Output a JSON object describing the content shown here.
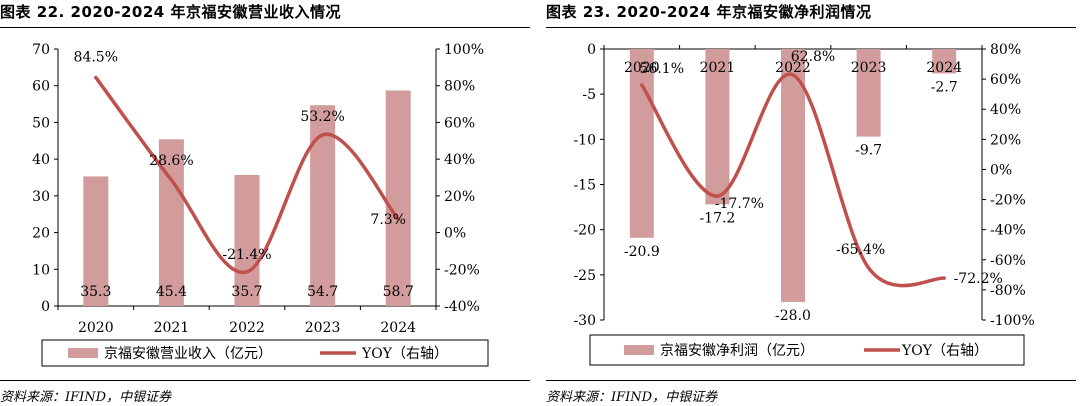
{
  "colors": {
    "bar": "#d29c9c",
    "line": "#c0504d",
    "axis": "#000000"
  },
  "panels": [
    {
      "title": "图表 22. 2020-2024 年京福安徽营业收入情况",
      "source": "资料来源：IFIND，中银证券",
      "chart_data": {
        "type": "bar",
        "categories": [
          "2020",
          "2021",
          "2022",
          "2023",
          "2024"
        ],
        "series": [
          {
            "name": "京福安徽营业收入（亿元）",
            "type": "bar",
            "axis": "left",
            "values": [
              35.3,
              45.4,
              35.7,
              54.7,
              58.7
            ],
            "labels": [
              "35.3",
              "45.4",
              "35.7",
              "54.7",
              "58.7"
            ]
          },
          {
            "name": "YOY（右轴）",
            "type": "line",
            "axis": "right",
            "smooth": true,
            "values": [
              84.5,
              28.6,
              -21.4,
              53.2,
              7.3
            ],
            "labels": [
              "84.5%",
              "28.6%",
              "-21.4%",
              "53.2%",
              "7.3%"
            ]
          }
        ],
        "y_left": {
          "min": 0,
          "max": 70,
          "ticks": [
            0,
            10,
            20,
            30,
            40,
            50,
            60,
            70
          ],
          "tick_labels": [
            "0",
            "10",
            "20",
            "30",
            "40",
            "50",
            "60",
            "70"
          ]
        },
        "y_right": {
          "min": -40,
          "max": 100,
          "ticks": [
            -40,
            -20,
            0,
            20,
            40,
            60,
            80,
            100
          ],
          "tick_labels": [
            "-40%",
            "-20%",
            "0%",
            "20%",
            "40%",
            "60%",
            "80%",
            "100%"
          ]
        },
        "category_labels_position": "bottom",
        "legend": "bottom",
        "grid": false
      }
    },
    {
      "title": "图表 23. 2020-2024 年京福安徽净利润情况",
      "source": "资料来源：IFIND，中银证券",
      "chart_data": {
        "type": "bar",
        "categories": [
          "2020",
          "2021",
          "2022",
          "2023",
          "2024"
        ],
        "series": [
          {
            "name": "京福安徽净利润（亿元）",
            "type": "bar",
            "axis": "left",
            "values": [
              -20.9,
              -17.2,
              -28.0,
              -9.7,
              -2.7
            ],
            "labels": [
              "-20.9",
              "-17.2",
              "-28.0",
              "-9.7",
              "-2.7"
            ]
          },
          {
            "name": "YOY（右轴）",
            "type": "line",
            "axis": "right",
            "smooth": true,
            "values": [
              56.1,
              -17.7,
              62.8,
              -65.4,
              -72.2
            ],
            "labels": [
              "56.1%",
              "-17.7%",
              "62.8%",
              "-65.4%",
              "-72.2%"
            ]
          }
        ],
        "y_left": {
          "min": -30,
          "max": 0,
          "ticks": [
            -30,
            -25,
            -20,
            -15,
            -10,
            -5,
            0
          ],
          "tick_labels": [
            "-30",
            "-25",
            "-20",
            "-15",
            "-10",
            "-5",
            "0"
          ]
        },
        "y_right": {
          "min": -100,
          "max": 80,
          "ticks": [
            -100,
            -80,
            -60,
            -40,
            -20,
            0,
            20,
            40,
            60,
            80
          ],
          "tick_labels": [
            "-100%",
            "-80%",
            "-60%",
            "-40%",
            "-20%",
            "0%",
            "20%",
            "40%",
            "60%",
            "80%"
          ]
        },
        "category_labels_position": "top",
        "legend": "bottom",
        "grid": false
      }
    }
  ]
}
